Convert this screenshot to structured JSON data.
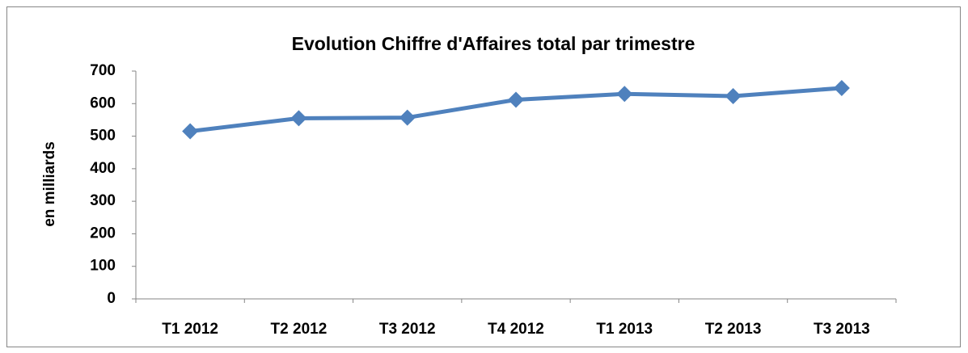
{
  "chart_data": {
    "type": "line",
    "title": "Evolution Chiffre d'Affaires total par trimestre",
    "y_label": "en milliards",
    "categories": [
      "T1 2012",
      "T2 2012",
      "T3 2012",
      "T4 2012",
      "T1 2013",
      "T2 2013",
      "T3 2013"
    ],
    "values": [
      515,
      555,
      557,
      612,
      630,
      623,
      648
    ],
    "color": "#4f81bd",
    "marker": "diamond",
    "ylim": [
      0,
      700
    ],
    "yticks": [
      0,
      100,
      200,
      300,
      400,
      500,
      600,
      700
    ],
    "grid": false
  }
}
